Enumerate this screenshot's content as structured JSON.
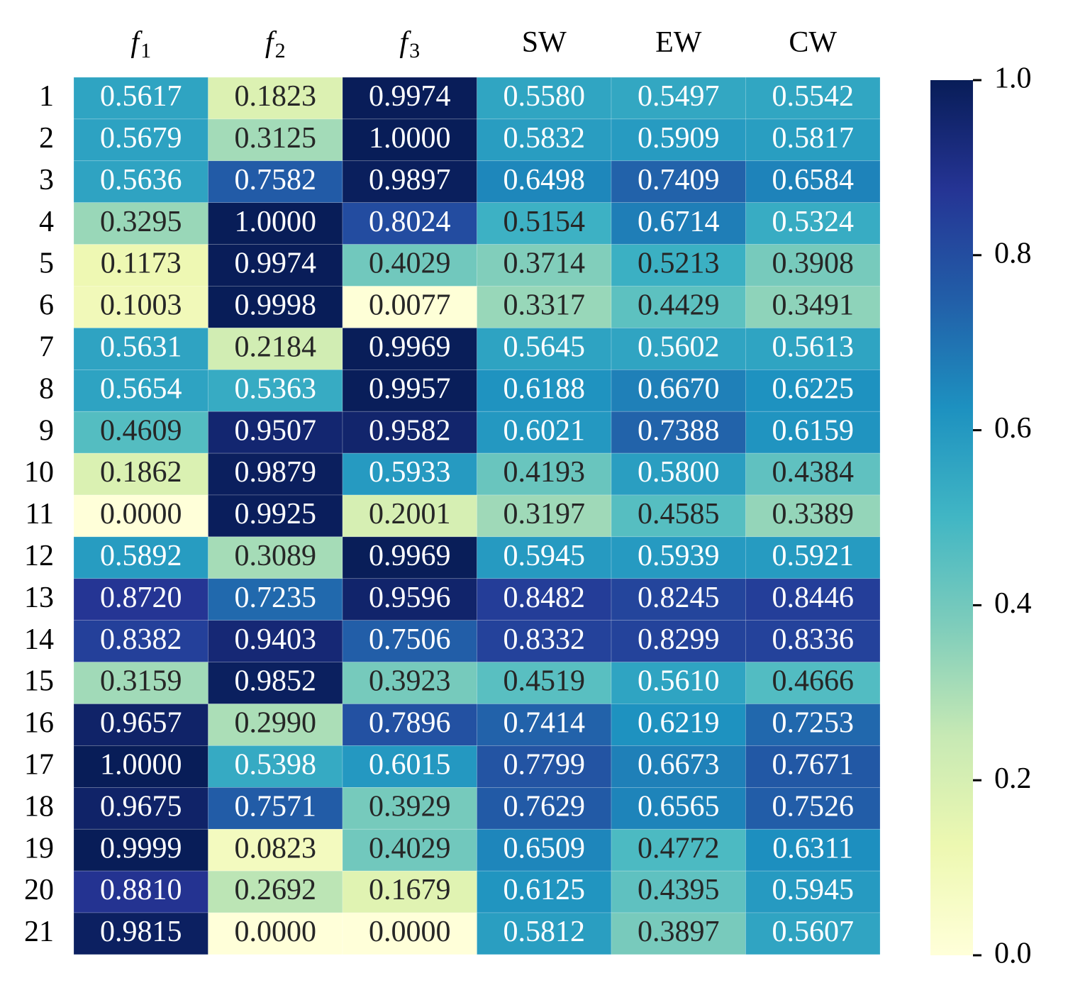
{
  "chart_data": {
    "type": "heatmap",
    "columns": [
      {
        "base": "f",
        "sub": "1",
        "italic": true
      },
      {
        "base": "f",
        "sub": "2",
        "italic": true
      },
      {
        "base": "f",
        "sub": "3",
        "italic": true
      },
      {
        "base": "SW",
        "sub": "",
        "italic": false
      },
      {
        "base": "EW",
        "sub": "",
        "italic": false
      },
      {
        "base": "CW",
        "sub": "",
        "italic": false
      }
    ],
    "rows": [
      "1",
      "2",
      "3",
      "4",
      "5",
      "6",
      "7",
      "8",
      "9",
      "10",
      "11",
      "12",
      "13",
      "14",
      "15",
      "16",
      "17",
      "18",
      "19",
      "20",
      "21"
    ],
    "values": [
      [
        0.5617,
        0.1823,
        0.9974,
        0.558,
        0.5497,
        0.5542
      ],
      [
        0.5679,
        0.3125,
        1.0,
        0.5832,
        0.5909,
        0.5817
      ],
      [
        0.5636,
        0.7582,
        0.9897,
        0.6498,
        0.7409,
        0.6584
      ],
      [
        0.3295,
        1.0,
        0.8024,
        0.5154,
        0.6714,
        0.5324
      ],
      [
        0.1173,
        0.9974,
        0.4029,
        0.3714,
        0.5213,
        0.3908
      ],
      [
        0.1003,
        0.9998,
        0.0077,
        0.3317,
        0.4429,
        0.3491
      ],
      [
        0.5631,
        0.2184,
        0.9969,
        0.5645,
        0.5602,
        0.5613
      ],
      [
        0.5654,
        0.5363,
        0.9957,
        0.6188,
        0.667,
        0.6225
      ],
      [
        0.4609,
        0.9507,
        0.9582,
        0.6021,
        0.7388,
        0.6159
      ],
      [
        0.1862,
        0.9879,
        0.5933,
        0.4193,
        0.58,
        0.4384
      ],
      [
        0.0,
        0.9925,
        0.2001,
        0.3197,
        0.4585,
        0.3389
      ],
      [
        0.5892,
        0.3089,
        0.9969,
        0.5945,
        0.5939,
        0.5921
      ],
      [
        0.872,
        0.7235,
        0.9596,
        0.8482,
        0.8245,
        0.8446
      ],
      [
        0.8382,
        0.9403,
        0.7506,
        0.8332,
        0.8299,
        0.8336
      ],
      [
        0.3159,
        0.9852,
        0.3923,
        0.4519,
        0.561,
        0.4666
      ],
      [
        0.9657,
        0.299,
        0.7896,
        0.7414,
        0.6219,
        0.7253
      ],
      [
        1.0,
        0.5398,
        0.6015,
        0.7799,
        0.6673,
        0.7671
      ],
      [
        0.9675,
        0.7571,
        0.3929,
        0.7629,
        0.6565,
        0.7526
      ],
      [
        0.9999,
        0.0823,
        0.4029,
        0.6509,
        0.4772,
        0.6311
      ],
      [
        0.881,
        0.2692,
        0.1679,
        0.6125,
        0.4395,
        0.5945
      ],
      [
        0.9815,
        0.0,
        0.0,
        0.5812,
        0.3897,
        0.5607
      ]
    ],
    "value_format_decimals": 4,
    "colormap": "YlGnBu",
    "colormap_stops": [
      "#ffffd9",
      "#edf8b1",
      "#c7e9b4",
      "#7fcdbb",
      "#41b6c4",
      "#1d91c0",
      "#225ea8",
      "#253494",
      "#081d58"
    ],
    "vmin": 0.0,
    "vmax": 1.0,
    "colorbar": {
      "ticks": [
        "0.0",
        "0.2",
        "0.4",
        "0.6",
        "0.8",
        "1.0"
      ],
      "position": "right"
    },
    "cell_text_dark": "#262626",
    "cell_text_light": "#ffffff"
  }
}
